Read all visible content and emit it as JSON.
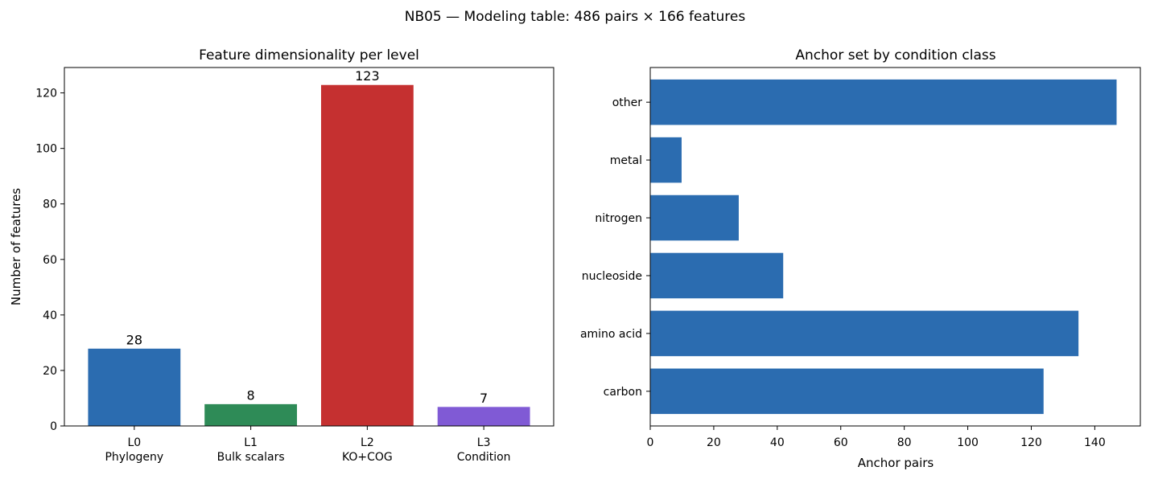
{
  "suptitle": "NB05 — Modeling table: 486 pairs × 166 features",
  "chart_data": [
    {
      "type": "bar",
      "title": "Feature dimensionality per level",
      "xlabel": "",
      "ylabel": "Number of features",
      "categories": [
        "L0\nPhylogeny",
        "L1\nBulk scalars",
        "L2\nKO+COG",
        "L3\nCondition"
      ],
      "values": [
        28,
        8,
        123,
        7
      ],
      "value_labels": [
        "28",
        "8",
        "123",
        "7"
      ],
      "colors": [
        "#2b6cb0",
        "#2e8b57",
        "#c53030",
        "#805ad5"
      ],
      "ylim": [
        0,
        129.15
      ],
      "yticks": [
        0,
        20,
        40,
        60,
        80,
        100,
        120
      ],
      "grid": false
    },
    {
      "type": "bar",
      "orientation": "horizontal",
      "title": "Anchor set by condition class",
      "xlabel": "Anchor pairs",
      "ylabel": "",
      "categories": [
        "carbon",
        "amino acid",
        "nucleoside",
        "nitrogen",
        "metal",
        "other"
      ],
      "values": [
        124,
        135,
        42,
        28,
        10,
        147
      ],
      "colors": [
        "#2b6cb0"
      ],
      "xlim": [
        0,
        154.35
      ],
      "xticks": [
        0,
        20,
        40,
        60,
        80,
        100,
        120,
        140
      ],
      "grid": false
    }
  ]
}
